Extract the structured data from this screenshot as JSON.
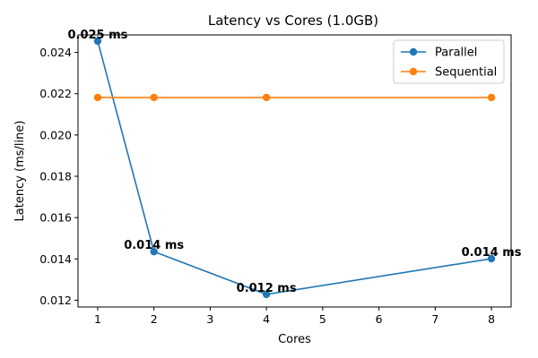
{
  "chart_data": {
    "type": "line",
    "title": "Latency vs Cores (1.0GB)",
    "xlabel": "Cores",
    "ylabel": "Latency (ms/line)",
    "x": [
      1,
      2,
      4,
      8
    ],
    "xlim": [
      0.65,
      8.35
    ],
    "ylim": [
      0.01167,
      0.02485
    ],
    "xticks": [
      1,
      2,
      3,
      4,
      5,
      6,
      7,
      8
    ],
    "yticks": [
      0.012,
      0.014,
      0.016,
      0.018,
      0.02,
      0.022,
      0.024
    ],
    "xtick_labels": [
      "1",
      "2",
      "3",
      "4",
      "5",
      "6",
      "7",
      "8"
    ],
    "ytick_labels": [
      "0.012",
      "0.014",
      "0.016",
      "0.018",
      "0.020",
      "0.022",
      "0.024"
    ],
    "series": [
      {
        "name": "Parallel",
        "color": "#1f77b4",
        "values": [
          0.02455,
          0.01435,
          0.01228,
          0.01401
        ],
        "data_labels": [
          "0.025 ms",
          "0.014 ms",
          "0.012 ms",
          "0.014 ms"
        ]
      },
      {
        "name": "Sequential",
        "color": "#ff7f0e",
        "values": [
          0.02182,
          0.02182,
          0.02182,
          0.02182
        ]
      }
    ],
    "legend_position": "top-right",
    "grid": false
  }
}
